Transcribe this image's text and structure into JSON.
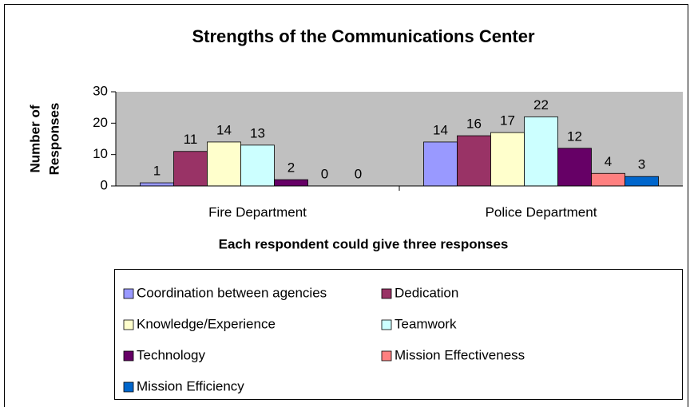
{
  "chart_data": {
    "type": "bar",
    "title": "Strengths of the Communications Center",
    "x_label": "Each respondent could give three responses",
    "y_label": [
      "Number of",
      "Responses"
    ],
    "categories": [
      "Fire Department",
      "Police Department"
    ],
    "series": [
      {
        "name": "Coordination between agencies",
        "color": "#9999ff",
        "values": [
          1,
          14
        ]
      },
      {
        "name": "Dedication",
        "color": "#993366",
        "values": [
          11,
          16
        ]
      },
      {
        "name": "Knowledge/Experience",
        "color": "#ffffcc",
        "values": [
          14,
          17
        ]
      },
      {
        "name": "Teamwork",
        "color": "#ccffff",
        "values": [
          13,
          22
        ]
      },
      {
        "name": "Technology",
        "color": "#660066",
        "values": [
          2,
          12
        ]
      },
      {
        "name": "Mission Effectiveness",
        "color": "#ff8080",
        "values": [
          0,
          4
        ]
      },
      {
        "name": "Mission Efficiency",
        "color": "#0066cc",
        "values": [
          0,
          3
        ]
      }
    ],
    "ylim": [
      0,
      30
    ],
    "yticks": [
      0,
      10,
      20,
      30
    ],
    "plot_background": "#c0c0c0",
    "legend": "bottom"
  }
}
